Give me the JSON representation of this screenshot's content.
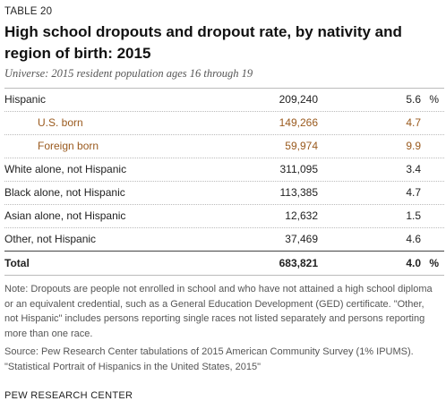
{
  "table_label": "TABLE 20",
  "title": "High school dropouts and dropout rate, by nativity and region of birth: 2015",
  "universe": "Universe: 2015 resident population ages 16 through 19",
  "rows": [
    {
      "name": "Hispanic",
      "count": "209,240",
      "rate": "5.6",
      "pct": "%"
    },
    {
      "name": "U.S. born",
      "count": "149,266",
      "rate": "4.7"
    },
    {
      "name": "Foreign born",
      "count": "59,974",
      "rate": "9.9"
    },
    {
      "name": "White alone, not Hispanic",
      "count": "311,095",
      "rate": "3.4"
    },
    {
      "name": "Black alone, not Hispanic",
      "count": "113,385",
      "rate": "4.7"
    },
    {
      "name": "Asian alone, not Hispanic",
      "count": "12,632",
      "rate": "1.5"
    },
    {
      "name": "Other, not Hispanic",
      "count": "37,469",
      "rate": "4.6"
    }
  ],
  "total": {
    "name": "Total",
    "count": "683,821",
    "rate": "4.0",
    "pct": "%"
  },
  "note": "Note: Dropouts are people not enrolled in school and who have not attained a high school diploma or an equivalent credential, such as a General Education Development (GED) certificate. \"Other, not Hispanic\" includes persons reporting single races not listed separately and persons reporting more than one race.",
  "source_line1": "Source: Pew Research Center tabulations of 2015 American Community Survey (1% IPUMS).",
  "source_line2": "\"Statistical Portrait of Hispanics in the United States, 2015\"",
  "org": "PEW RESEARCH CENTER",
  "colors": {
    "subgroup_text": "#9a5a1e",
    "rule": "#bbbbbb"
  }
}
